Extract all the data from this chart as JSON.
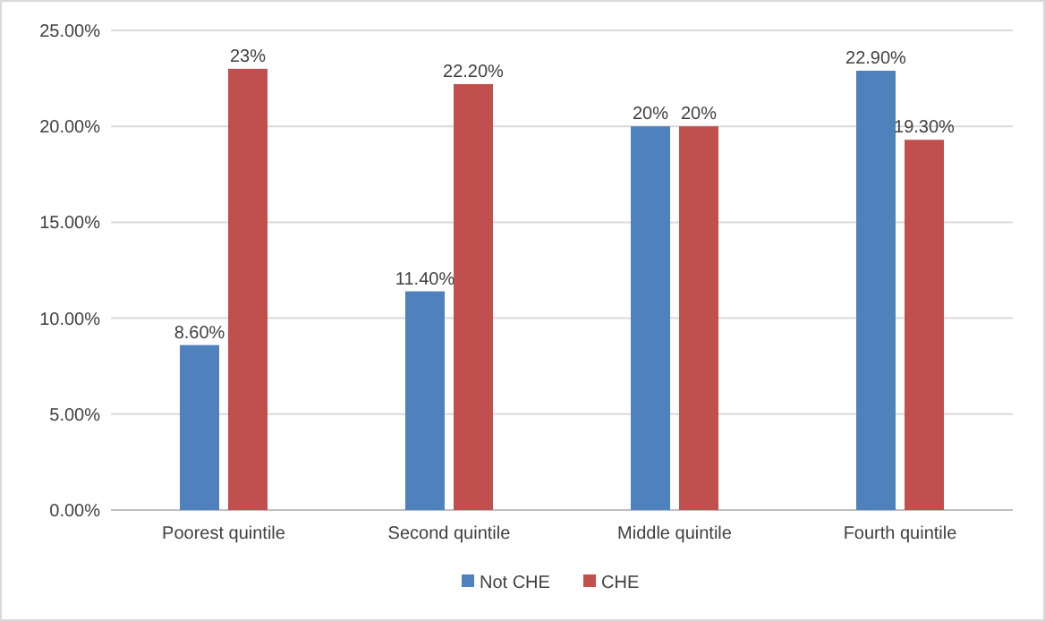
{
  "chart_data": {
    "type": "bar",
    "categories": [
      "Poorest quintile",
      "Second quintile",
      "Middle quintile",
      "Fourth quintile"
    ],
    "series": [
      {
        "name": "Not CHE",
        "color": "#4f81bd",
        "values": [
          8.6,
          11.4,
          20,
          22.9
        ],
        "value_labels": [
          "8.60%",
          "11.40%",
          "20%",
          "22.90%"
        ]
      },
      {
        "name": "CHE",
        "color": "#c0504d",
        "values": [
          23,
          22.2,
          20,
          19.3
        ],
        "value_labels": [
          "23%",
          "22.20%",
          "20%",
          "19.30%"
        ]
      }
    ],
    "ylim": [
      0,
      25
    ],
    "yticks": [
      {
        "value": 0,
        "label": "0.00%"
      },
      {
        "value": 5,
        "label": "5.00%"
      },
      {
        "value": 10,
        "label": "10.00%"
      },
      {
        "value": 15,
        "label": "15.00%"
      },
      {
        "value": 20,
        "label": "20.00%"
      },
      {
        "value": 25,
        "label": "25.00%"
      }
    ],
    "grid": "y",
    "legend": "bottom"
  }
}
